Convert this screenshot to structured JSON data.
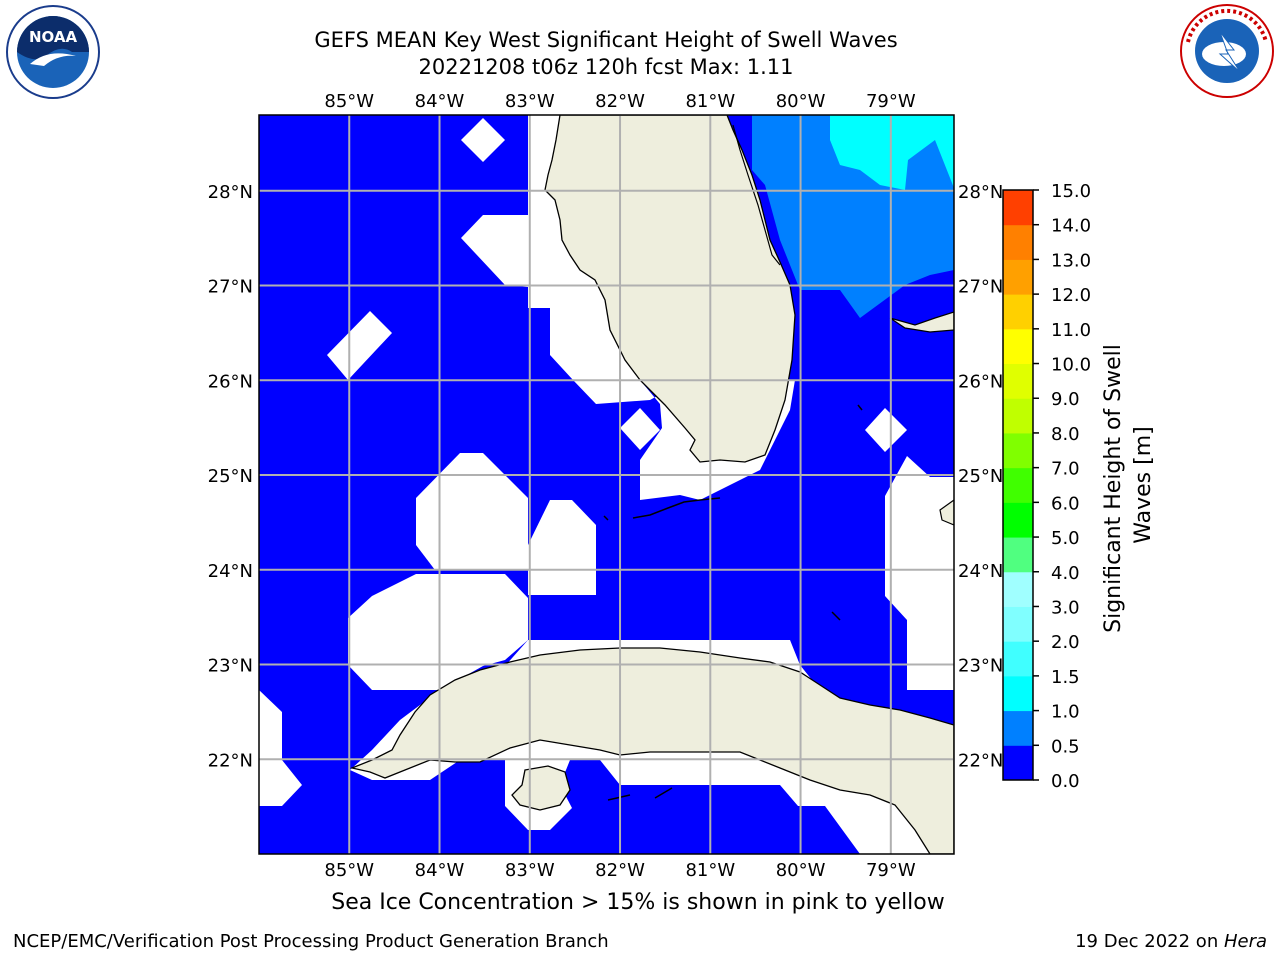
{
  "title": {
    "line1": "GEFS MEAN Key West Significant Height of Swell Waves",
    "line2": "20221208 t06z 120h fcst   Max: 1.11"
  },
  "map": {
    "lon_range": [
      -86.0,
      -78.3
    ],
    "lat_range": [
      21.0,
      28.8
    ],
    "lon_ticks": [
      -85,
      -84,
      -83,
      -82,
      -81,
      -80,
      -79
    ],
    "lon_labels": [
      "85°W",
      "84°W",
      "83°W",
      "82°W",
      "81°W",
      "80°W",
      "79°W"
    ],
    "lat_ticks": [
      22,
      23,
      24,
      25,
      26,
      27,
      28
    ],
    "lat_labels": [
      "22°N",
      "23°N",
      "24°N",
      "25°N",
      "26°N",
      "27°N",
      "28°N"
    ],
    "colors": {
      "ocean_low": "#0000ff",
      "ocean_mid": "#0080ff",
      "ocean_high": "#00ffff",
      "land": "#eeeedd",
      "grid": "#b0b0b0"
    }
  },
  "colorbar": {
    "label_line1": "Significant Height of Swell",
    "label_line2": "Waves [m]",
    "ticks": [
      "0.0",
      "0.5",
      "1.0",
      "1.5",
      "2.0",
      "3.0",
      "4.0",
      "5.0",
      "6.0",
      "7.0",
      "8.0",
      "9.0",
      "10.0",
      "11.0",
      "12.0",
      "13.0",
      "14.0",
      "15.0"
    ],
    "colors": [
      "#0000ff",
      "#0080ff",
      "#00ffff",
      "#40ffff",
      "#80ffff",
      "#a0ffff",
      "#50ff80",
      "#00ff00",
      "#40ff00",
      "#80ff00",
      "#c0ff00",
      "#e0ff00",
      "#ffff00",
      "#ffd000",
      "#ffa000",
      "#ff8000",
      "#ff4000",
      "#ff0000"
    ]
  },
  "note": "Sea Ice Concentration > 15% is shown in pink to yellow",
  "footer": {
    "left": "NCEP/EMC/Verification Post Processing Product Generation Branch",
    "right_date": "19 Dec 2022 on ",
    "right_host": "Hera"
  },
  "logos": {
    "left": "NOAA",
    "right": "NATIONAL WEATHER SERVICE"
  }
}
